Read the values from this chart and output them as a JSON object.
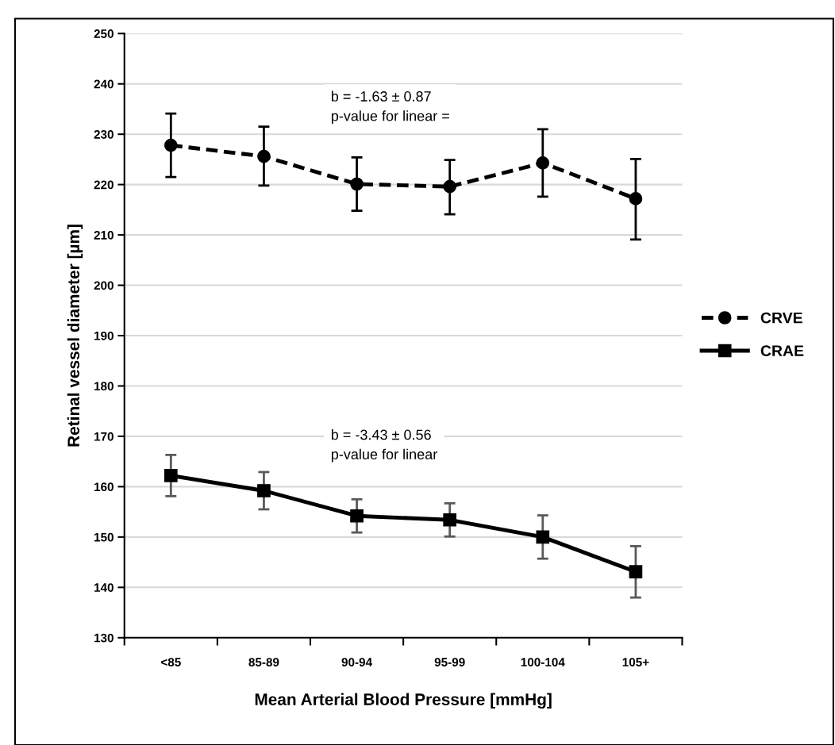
{
  "chart_data": {
    "type": "line",
    "xlabel": "Mean Arterial Blood Pressure [mmHg]",
    "ylabel": "Retinal vessel diameter [µm]",
    "categories": [
      "<85",
      "85-89",
      "90-94",
      "95-99",
      "100-104",
      "105+"
    ],
    "series": [
      {
        "name": "CRVE",
        "color": "#000000",
        "marker": "circle",
        "line_style": "dashed",
        "values": [
          227.8,
          225.6,
          220.1,
          219.6,
          224.3,
          217.2
        ],
        "errors": [
          [
            221.5,
            234.1
          ],
          [
            219.8,
            231.5
          ],
          [
            214.8,
            225.4
          ],
          [
            214.1,
            224.9
          ],
          [
            217.6,
            231.0
          ],
          [
            209.1,
            225.1
          ]
        ]
      },
      {
        "name": "CRAE",
        "color": "#000000",
        "marker": "square",
        "line_style": "solid",
        "values": [
          162.2,
          159.2,
          154.2,
          153.4,
          150.0,
          143.1
        ],
        "errors": [
          [
            158.1,
            166.3
          ],
          [
            155.5,
            162.9
          ],
          [
            150.9,
            157.5
          ],
          [
            150.1,
            156.7
          ],
          [
            145.7,
            154.3
          ],
          [
            138.0,
            148.2
          ]
        ]
      }
    ],
    "annotations": [
      "b = -1.63 ± 0.87\np-value for linear =",
      "b = -3.43 ± 0.56\np-value for linear"
    ],
    "ylim": [
      130,
      250
    ],
    "yticks": [
      130,
      140,
      150,
      160,
      170,
      180,
      190,
      200,
      210,
      220,
      230,
      240,
      250
    ],
    "grid": "y",
    "legend": "right"
  }
}
